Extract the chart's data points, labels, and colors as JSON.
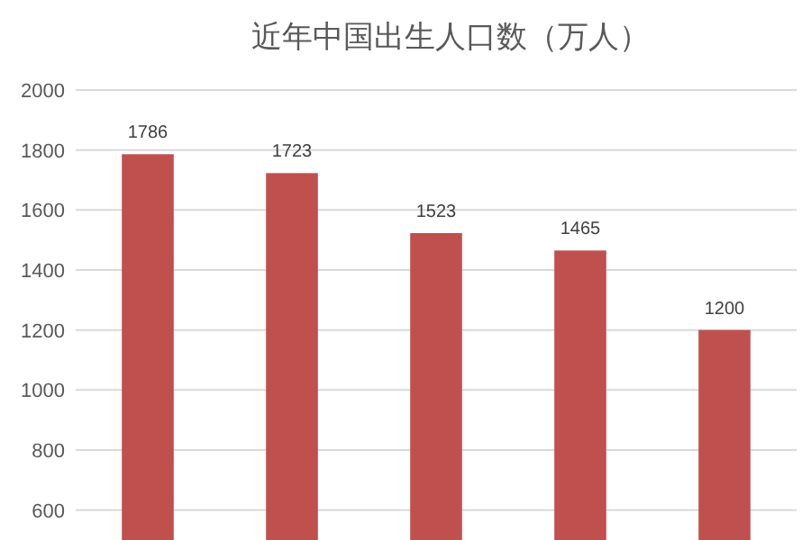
{
  "chart_data": {
    "type": "bar",
    "title": "近年中国出生人口数（万人）",
    "categories": [
      null,
      null,
      null,
      null,
      null
    ],
    "values": [
      1786,
      1723,
      1523,
      1465,
      1200
    ],
    "color": "#c0504d",
    "data_labels": true,
    "grid": "y",
    "ylim": [
      500,
      2000
    ],
    "yticks": [
      600,
      800,
      1000,
      1200,
      1400,
      1600,
      1800,
      2000
    ]
  }
}
